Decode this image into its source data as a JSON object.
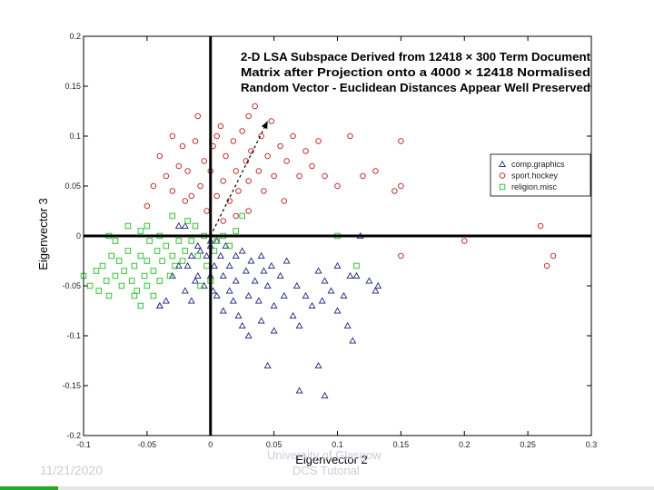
{
  "chart_data": {
    "type": "scatter",
    "title_lines": [
      "2-D LSA Subspace Derived from 12418 × 300 Term Document",
      "Matrix after Projection onto a 4000 × 12418 Normalised",
      "Random Vector - Euclidean Distances Appear Well Preserved"
    ],
    "xlabel": "Eigenvector 2",
    "ylabel": "Eigenvector 3",
    "xlim": [
      -0.1,
      0.3
    ],
    "ylim": [
      -0.2,
      0.2
    ],
    "xticks": [
      "-0.1",
      "-0.05",
      "0",
      "0.05",
      "0.1",
      "0.15",
      "0.2",
      "0.25",
      "0.3"
    ],
    "yticks": [
      "0.2",
      "0.15",
      "0.1",
      "0.05",
      "0",
      "-0.05",
      "-0.1",
      "-0.15",
      "-0.2"
    ],
    "legend": {
      "placement": "right",
      "entries": [
        {
          "label": "comp.graphics",
          "marker": "triangle",
          "color": "#1a237e"
        },
        {
          "label": "sport.hockey",
          "marker": "circle",
          "color": "#b71c1c"
        },
        {
          "label": "religion.misc",
          "marker": "square",
          "color": "#22bb22"
        }
      ]
    },
    "arrow": {
      "from": [
        0.0,
        0.0
      ],
      "to": [
        0.045,
        0.115
      ]
    },
    "series": [
      {
        "name": "comp.graphics",
        "marker": "triangle",
        "color": "#1a237e",
        "points": [
          [
            -0.04,
            -0.07
          ],
          [
            -0.035,
            -0.065
          ],
          [
            -0.03,
            -0.04
          ],
          [
            -0.025,
            -0.03
          ],
          [
            -0.02,
            -0.055
          ],
          [
            -0.018,
            -0.03
          ],
          [
            -0.015,
            -0.02
          ],
          [
            -0.012,
            -0.045
          ],
          [
            -0.01,
            -0.04
          ],
          [
            -0.008,
            -0.015
          ],
          [
            -0.005,
            -0.05
          ],
          [
            -0.003,
            -0.02
          ],
          [
            0.0,
            -0.01
          ],
          [
            0.0,
            -0.04
          ],
          [
            0.002,
            -0.055
          ],
          [
            0.003,
            -0.03
          ],
          [
            0.005,
            -0.005
          ],
          [
            0.005,
            -0.06
          ],
          [
            0.008,
            -0.02
          ],
          [
            0.01,
            -0.04
          ],
          [
            0.01,
            -0.075
          ],
          [
            0.012,
            -0.01
          ],
          [
            0.015,
            -0.03
          ],
          [
            0.015,
            -0.055
          ],
          [
            0.018,
            -0.065
          ],
          [
            0.02,
            -0.02
          ],
          [
            0.02,
            -0.045
          ],
          [
            0.022,
            -0.08
          ],
          [
            0.025,
            -0.015
          ],
          [
            0.028,
            -0.035
          ],
          [
            0.03,
            -0.06
          ],
          [
            0.03,
            -0.1
          ],
          [
            0.032,
            -0.025
          ],
          [
            0.035,
            -0.045
          ],
          [
            0.038,
            -0.065
          ],
          [
            0.04,
            -0.02
          ],
          [
            0.04,
            -0.085
          ],
          [
            0.042,
            -0.035
          ],
          [
            0.045,
            -0.05
          ],
          [
            0.048,
            -0.03
          ],
          [
            0.05,
            -0.07
          ],
          [
            0.05,
            -0.095
          ],
          [
            0.055,
            -0.04
          ],
          [
            0.058,
            -0.06
          ],
          [
            0.06,
            -0.025
          ],
          [
            0.065,
            -0.08
          ],
          [
            0.068,
            -0.05
          ],
          [
            0.07,
            -0.09
          ],
          [
            0.075,
            -0.06
          ],
          [
            0.08,
            -0.07
          ],
          [
            0.085,
            -0.035
          ],
          [
            0.088,
            -0.065
          ],
          [
            0.09,
            -0.045
          ],
          [
            0.095,
            -0.055
          ],
          [
            0.1,
            -0.03
          ],
          [
            0.1,
            -0.075
          ],
          [
            0.105,
            -0.06
          ],
          [
            0.108,
            -0.09
          ],
          [
            0.11,
            -0.04
          ],
          [
            0.112,
            -0.105
          ],
          [
            0.115,
            -0.04
          ],
          [
            0.118,
            0.0
          ],
          [
            0.125,
            -0.045
          ],
          [
            0.13,
            -0.055
          ],
          [
            0.132,
            -0.05
          ],
          [
            -0.025,
            0.01
          ],
          [
            -0.02,
            0.01
          ],
          [
            -0.01,
            -0.01
          ],
          [
            0.0,
            -0.005
          ],
          [
            0.07,
            -0.155
          ],
          [
            0.085,
            -0.13
          ],
          [
            0.09,
            -0.16
          ],
          [
            0.045,
            -0.13
          ],
          [
            -0.04,
            -0.07
          ],
          [
            -0.015,
            -0.065
          ],
          [
            0.025,
            -0.09
          ]
        ]
      },
      {
        "name": "sport.hockey",
        "marker": "circle",
        "color": "#b71c1c",
        "points": [
          [
            -0.05,
            0.03
          ],
          [
            -0.045,
            0.05
          ],
          [
            -0.04,
            0.08
          ],
          [
            -0.035,
            0.06
          ],
          [
            -0.03,
            0.1
          ],
          [
            -0.03,
            0.045
          ],
          [
            -0.025,
            0.07
          ],
          [
            -0.022,
            0.09
          ],
          [
            -0.02,
            0.035
          ],
          [
            -0.018,
            0.065
          ],
          [
            -0.015,
            0.04
          ],
          [
            -0.012,
            0.095
          ],
          [
            -0.01,
            0.12
          ],
          [
            -0.008,
            0.05
          ],
          [
            -0.005,
            0.075
          ],
          [
            -0.003,
            0.025
          ],
          [
            0.0,
            0.065
          ],
          [
            0.002,
            0.09
          ],
          [
            0.005,
            0.1
          ],
          [
            0.005,
            0.04
          ],
          [
            0.008,
            0.11
          ],
          [
            0.01,
            0.055
          ],
          [
            0.012,
            0.08
          ],
          [
            0.015,
            0.035
          ],
          [
            0.018,
            0.095
          ],
          [
            0.02,
            0.065
          ],
          [
            0.022,
            0.045
          ],
          [
            0.025,
            0.105
          ],
          [
            0.028,
            0.075
          ],
          [
            0.03,
            0.12
          ],
          [
            0.03,
            0.055
          ],
          [
            0.032,
            0.085
          ],
          [
            0.035,
            0.13
          ],
          [
            0.038,
            0.065
          ],
          [
            0.04,
            0.1
          ],
          [
            0.042,
            0.045
          ],
          [
            0.045,
            0.08
          ],
          [
            0.048,
            0.115
          ],
          [
            0.05,
            0.06
          ],
          [
            0.055,
            0.09
          ],
          [
            0.058,
            0.035
          ],
          [
            0.06,
            0.075
          ],
          [
            0.065,
            0.1
          ],
          [
            0.07,
            0.06
          ],
          [
            0.075,
            0.085
          ],
          [
            0.08,
            0.07
          ],
          [
            0.085,
            0.095
          ],
          [
            0.09,
            0.06
          ],
          [
            0.1,
            0.05
          ],
          [
            0.11,
            0.1
          ],
          [
            0.12,
            0.06
          ],
          [
            0.13,
            0.065
          ],
          [
            0.145,
            0.045
          ],
          [
            0.15,
            0.05
          ],
          [
            0.15,
            0.095
          ],
          [
            0.15,
            -0.02
          ],
          [
            0.2,
            -0.005
          ],
          [
            0.26,
            0.01
          ],
          [
            0.265,
            -0.03
          ],
          [
            0.27,
            -0.02
          ],
          [
            0.01,
            0.015
          ],
          [
            0.02,
            0.02
          ],
          [
            0.03,
            0.025
          ]
        ]
      },
      {
        "name": "religion.misc",
        "marker": "square",
        "color": "#22bb22",
        "points": [
          [
            -0.1,
            -0.04
          ],
          [
            -0.095,
            -0.05
          ],
          [
            -0.09,
            -0.035
          ],
          [
            -0.088,
            -0.055
          ],
          [
            -0.085,
            -0.03
          ],
          [
            -0.082,
            -0.045
          ],
          [
            -0.08,
            -0.06
          ],
          [
            -0.078,
            -0.02
          ],
          [
            -0.075,
            -0.04
          ],
          [
            -0.072,
            -0.025
          ],
          [
            -0.07,
            -0.05
          ],
          [
            -0.068,
            -0.035
          ],
          [
            -0.065,
            -0.015
          ],
          [
            -0.062,
            -0.045
          ],
          [
            -0.06,
            -0.03
          ],
          [
            -0.058,
            -0.055
          ],
          [
            -0.055,
            -0.02
          ],
          [
            -0.052,
            -0.04
          ],
          [
            -0.05,
            -0.025
          ],
          [
            -0.048,
            -0.005
          ],
          [
            -0.045,
            -0.035
          ],
          [
            -0.042,
            -0.015
          ],
          [
            -0.04,
            -0.045
          ],
          [
            -0.038,
            -0.025
          ],
          [
            -0.035,
            -0.01
          ],
          [
            -0.032,
            -0.04
          ],
          [
            -0.03,
            -0.02
          ],
          [
            -0.028,
            -0.03
          ],
          [
            -0.025,
            -0.005
          ],
          [
            -0.022,
            -0.025
          ],
          [
            -0.02,
            -0.015
          ],
          [
            -0.018,
            0.015
          ],
          [
            -0.015,
            -0.005
          ],
          [
            -0.012,
            0.01
          ],
          [
            -0.01,
            -0.02
          ],
          [
            -0.008,
            -0.05
          ],
          [
            -0.005,
            0.0
          ],
          [
            -0.003,
            -0.03
          ],
          [
            0.0,
            -0.045
          ],
          [
            0.003,
            -0.015
          ],
          [
            0.005,
            -0.005
          ],
          [
            0.01,
            0.0
          ],
          [
            0.015,
            -0.01
          ],
          [
            0.02,
            0.005
          ],
          [
            0.025,
            0.02
          ],
          [
            -0.06,
            -0.06
          ],
          [
            -0.055,
            -0.07
          ],
          [
            -0.05,
            -0.05
          ],
          [
            -0.045,
            -0.06
          ],
          [
            -0.04,
            0.0
          ],
          [
            -0.03,
            0.02
          ],
          [
            -0.055,
            0.005
          ],
          [
            -0.065,
            0.01
          ],
          [
            -0.075,
            -0.005
          ],
          [
            -0.08,
            0.0
          ],
          [
            -0.05,
            0.01
          ],
          [
            0.1,
            0.0
          ],
          [
            0.115,
            -0.03
          ]
        ]
      }
    ]
  },
  "footer": {
    "date": "11/21/2020",
    "institution": "University of Glasgow",
    "department": "DCS Tutorial"
  }
}
